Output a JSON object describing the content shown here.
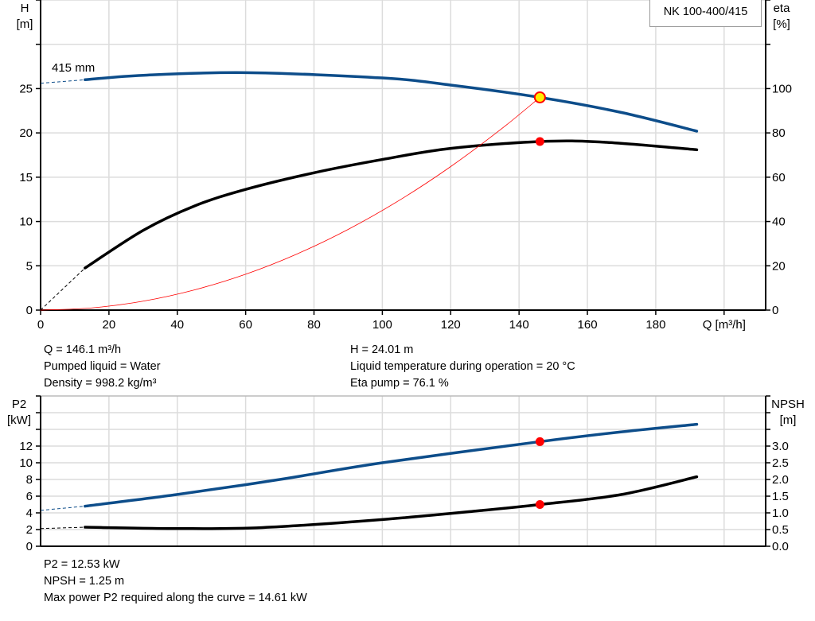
{
  "title": "NK 100-400/415",
  "info_top": {
    "left": [
      "Q = 146.1 m³/h",
      "Pumped liquid = Water",
      "Density = 998.2 kg/m³"
    ],
    "right": [
      "H = 24.01 m",
      "Liquid temperature during operation = 20 °C",
      "Eta pump = 76.1 %"
    ]
  },
  "info_bottom": [
    "P2 = 12.53 kW",
    "NPSH = 1.25 m",
    "Max power P2 required along the curve = 14.61 kW"
  ],
  "colors": {
    "blue": "#0d4d8a",
    "black": "#000000",
    "red": "#ff0000",
    "grid": "#dcdcdc",
    "op_point_fill": "#ffee00"
  },
  "chart_data": [
    {
      "type": "line",
      "xlabel": "Q [m³/h]",
      "ylabel_left": [
        "H",
        "[m]"
      ],
      "ylabel_right": [
        "eta",
        "[%]"
      ],
      "xlim": [
        0,
        212
      ],
      "ylim_left": [
        0,
        35
      ],
      "ylim_right": [
        0,
        140
      ],
      "xticks": [
        0,
        20,
        40,
        60,
        80,
        100,
        120,
        140,
        160,
        180
      ],
      "yticks_left": [
        0,
        5,
        10,
        15,
        20,
        25
      ],
      "yticks_right": [
        0,
        20,
        40,
        60,
        80,
        100
      ],
      "grid": true,
      "curve_label": "415 mm",
      "series": [
        {
          "name": "H",
          "axis": "left",
          "color": "#0d4d8a",
          "x": [
            13,
            30,
            60,
            100,
            120,
            146.1,
            170,
            192
          ],
          "y": [
            26.0,
            26.5,
            26.8,
            26.2,
            25.4,
            24.01,
            22.3,
            20.2
          ],
          "extrapolated": {
            "x": [
              0,
              13
            ],
            "y": [
              25.6,
              26.0
            ]
          }
        },
        {
          "name": "eta",
          "axis": "right",
          "color": "#000000",
          "x": [
            13,
            30,
            45,
            60,
            80,
            100,
            120,
            146.1,
            165,
            192
          ],
          "y": [
            19,
            36,
            47,
            54.5,
            62,
            68,
            73,
            76.1,
            75.8,
            72.4
          ],
          "extrapolated": {
            "x": [
              0,
              13
            ],
            "y": [
              0,
              19
            ]
          }
        },
        {
          "name": "system curve",
          "axis": "left",
          "color": "#ff0000",
          "x": [
            0,
            15,
            30,
            45,
            60,
            75,
            90,
            105,
            120,
            135,
            146.1
          ],
          "y": [
            0,
            0.25,
            1.01,
            2.28,
            4.05,
            6.33,
            9.11,
            12.4,
            16.2,
            20.5,
            24.01
          ]
        }
      ],
      "operating_points": [
        {
          "series": "H",
          "x": 146.1,
          "y": 24.01
        },
        {
          "series": "eta",
          "x": 146.1,
          "y": 76.1
        }
      ]
    },
    {
      "type": "line",
      "ylabel_left": [
        "P2",
        "[kW]"
      ],
      "ylabel_right": [
        "NPSH",
        "[m]"
      ],
      "xlim": [
        0,
        212
      ],
      "ylim_left": [
        0,
        18
      ],
      "ylim_right": [
        0,
        4.5
      ],
      "yticks_left": [
        0,
        2,
        4,
        6,
        8,
        10,
        12
      ],
      "yticks_right": [
        0.0,
        0.5,
        1.0,
        1.5,
        2.0,
        2.5,
        3.0
      ],
      "grid": true,
      "series": [
        {
          "name": "P2",
          "axis": "left",
          "color": "#0d4d8a",
          "x": [
            13,
            40,
            70,
            100,
            146.1,
            170,
            192
          ],
          "y": [
            4.8,
            6.2,
            8.0,
            10.0,
            12.53,
            13.7,
            14.61
          ],
          "extrapolated": {
            "x": [
              0,
              13
            ],
            "y": [
              4.3,
              4.8
            ]
          }
        },
        {
          "name": "NPSH",
          "axis": "right",
          "color": "#000000",
          "x": [
            13,
            40,
            65,
            100,
            130,
            146.1,
            170,
            192
          ],
          "y": [
            0.57,
            0.53,
            0.56,
            0.8,
            1.08,
            1.25,
            1.55,
            2.08
          ],
          "extrapolated": {
            "x": [
              0,
              13
            ],
            "y": [
              0.53,
              0.57
            ]
          }
        }
      ],
      "operating_points": [
        {
          "series": "P2",
          "x": 146.1,
          "y": 12.53
        },
        {
          "series": "NPSH",
          "x": 146.1,
          "y": 1.25
        }
      ]
    }
  ]
}
